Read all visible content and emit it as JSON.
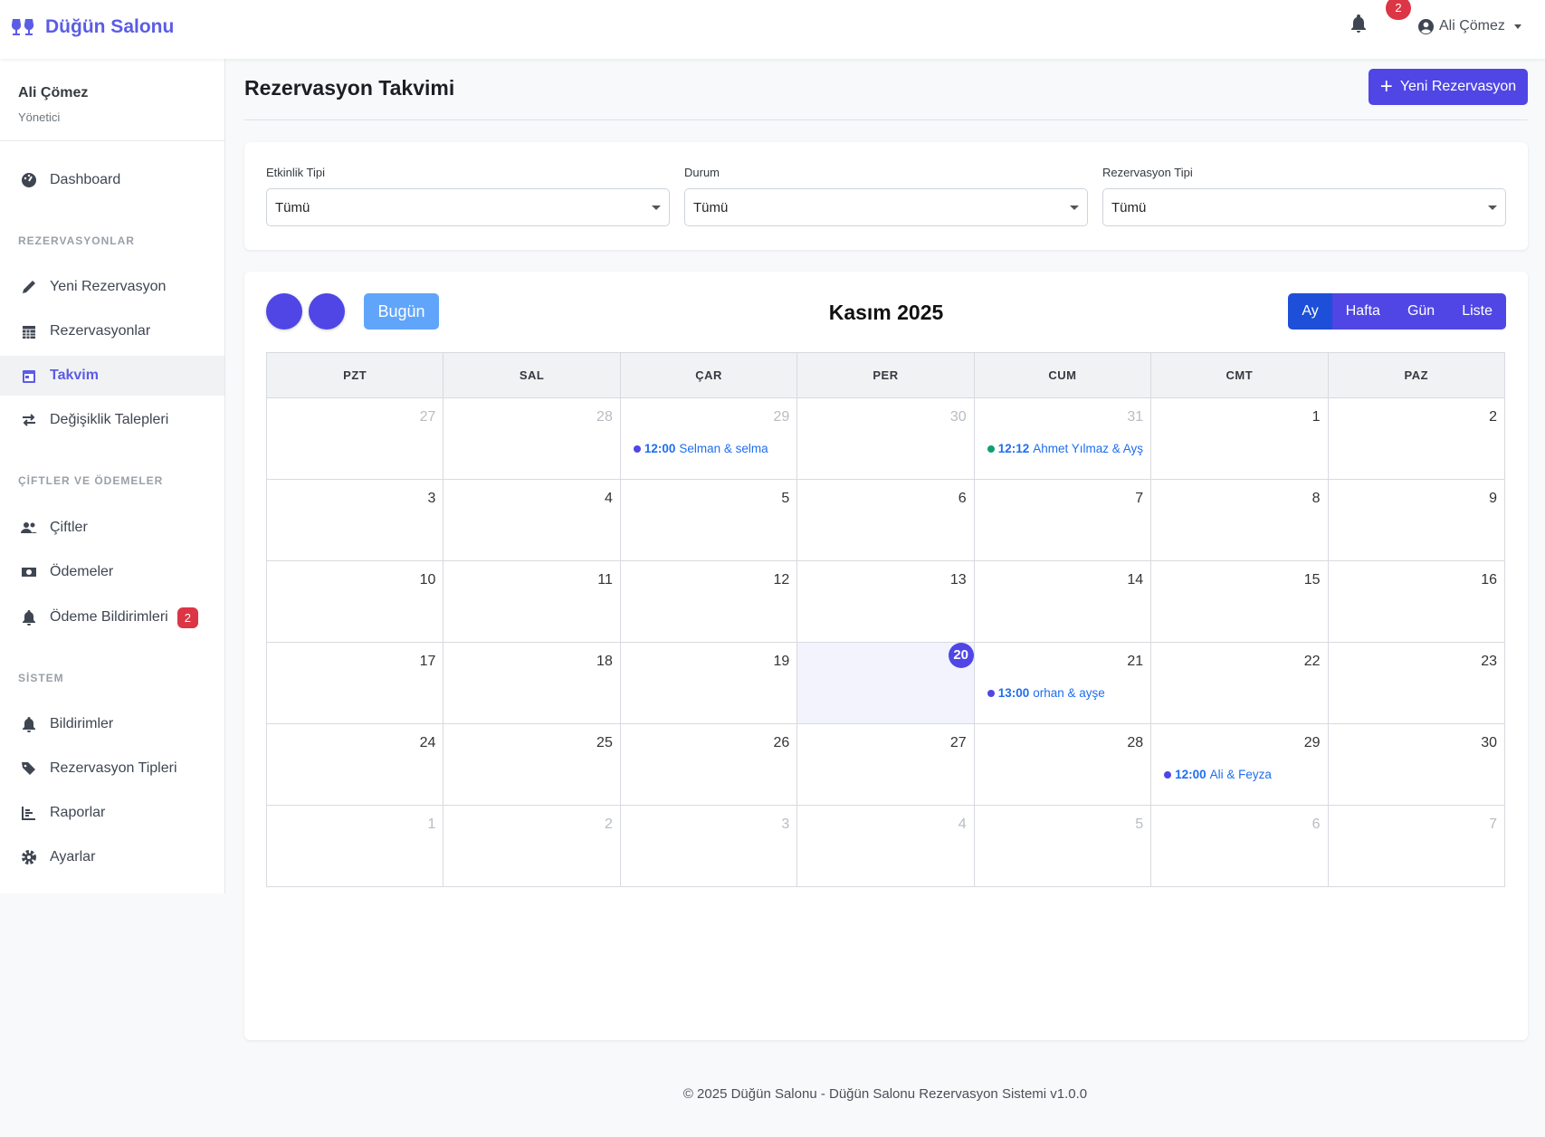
{
  "navbar": {
    "brand": "Düğün Salonu",
    "notification_count": "2",
    "user": "Ali Çömez"
  },
  "sidebar": {
    "user_name": "Ali Çömez",
    "user_role": "Yönetici",
    "sections": [
      "REZERVASYONLAR",
      "ÇİFTLER VE ÖDEMELER",
      "SİSTEM"
    ],
    "items": [
      {
        "label": "Dashboard",
        "icon": "gauge-icon"
      },
      {
        "label": "Yeni Rezervasyon",
        "icon": "pencil-icon"
      },
      {
        "label": "Rezervasyonlar",
        "icon": "calendar-grid-icon"
      },
      {
        "label": "Takvim",
        "icon": "calendar-icon",
        "active": true
      },
      {
        "label": "Değişiklik Talepleri",
        "icon": "exchange-icon"
      },
      {
        "label": "Çiftler",
        "icon": "users-icon"
      },
      {
        "label": "Ödemeler",
        "icon": "money-icon"
      },
      {
        "label": "Ödeme Bildirimleri",
        "icon": "bell-icon",
        "badge": "2"
      },
      {
        "label": "Bildirimler",
        "icon": "bell-icon"
      },
      {
        "label": "Rezervasyon Tipleri",
        "icon": "tags-icon"
      },
      {
        "label": "Raporlar",
        "icon": "chart-icon"
      },
      {
        "label": "Ayarlar",
        "icon": "gear-icon"
      }
    ]
  },
  "page": {
    "title": "Rezervasyon Takvimi",
    "new_button": "Yeni Rezervasyon"
  },
  "filters": [
    {
      "label": "Etkinlik Tipi",
      "value": "Tümü"
    },
    {
      "label": "Durum",
      "value": "Tümü"
    },
    {
      "label": "Rezervasyon Tipi",
      "value": "Tümü"
    }
  ],
  "calendar": {
    "title": "Kasım 2025",
    "today_label": "Bugün",
    "views": [
      "Ay",
      "Hafta",
      "Gün",
      "Liste"
    ],
    "active_view": "Ay",
    "weekdays": [
      "PZT",
      "SAL",
      "ÇAR",
      "PER",
      "CUM",
      "CMT",
      "PAZ"
    ],
    "today": "20",
    "weeks": [
      [
        {
          "d": "27",
          "o": true
        },
        {
          "d": "28",
          "o": true
        },
        {
          "d": "29",
          "o": true,
          "ev": {
            "time": "12:00",
            "title": "Selman & selma",
            "color": "#4f46e5"
          }
        },
        {
          "d": "30",
          "o": true
        },
        {
          "d": "31",
          "o": true,
          "ev": {
            "time": "12:12",
            "title": "Ahmet Yılmaz & Ayş",
            "color": "#10a070"
          }
        },
        {
          "d": "1"
        },
        {
          "d": "2"
        }
      ],
      [
        {
          "d": "3"
        },
        {
          "d": "4"
        },
        {
          "d": "5"
        },
        {
          "d": "6"
        },
        {
          "d": "7"
        },
        {
          "d": "8"
        },
        {
          "d": "9"
        }
      ],
      [
        {
          "d": "10"
        },
        {
          "d": "11"
        },
        {
          "d": "12"
        },
        {
          "d": "13"
        },
        {
          "d": "14"
        },
        {
          "d": "15"
        },
        {
          "d": "16"
        }
      ],
      [
        {
          "d": "17"
        },
        {
          "d": "18"
        },
        {
          "d": "19"
        },
        {
          "d": "20"
        },
        {
          "d": "21",
          "ev": {
            "time": "13:00",
            "title": "orhan & ayşe",
            "color": "#4f46e5"
          }
        },
        {
          "d": "22"
        },
        {
          "d": "23"
        }
      ],
      [
        {
          "d": "24"
        },
        {
          "d": "25"
        },
        {
          "d": "26"
        },
        {
          "d": "27"
        },
        {
          "d": "28"
        },
        {
          "d": "29",
          "ev": {
            "time": "12:00",
            "title": "Ali & Feyza",
            "color": "#4f46e5"
          }
        },
        {
          "d": "30"
        }
      ],
      [
        {
          "d": "1",
          "o": true
        },
        {
          "d": "2",
          "o": true
        },
        {
          "d": "3",
          "o": true
        },
        {
          "d": "4",
          "o": true
        },
        {
          "d": "5",
          "o": true
        },
        {
          "d": "6",
          "o": true
        },
        {
          "d": "7",
          "o": true
        }
      ]
    ]
  },
  "footer": "© 2025 Düğün Salonu - Düğün Salonu Rezervasyon Sistemi v1.0.0",
  "colors": {
    "primary": "#4f46e5",
    "brand": "#5b5ce6",
    "danger": "#dc3545",
    "today_button": "#60a5fa"
  }
}
